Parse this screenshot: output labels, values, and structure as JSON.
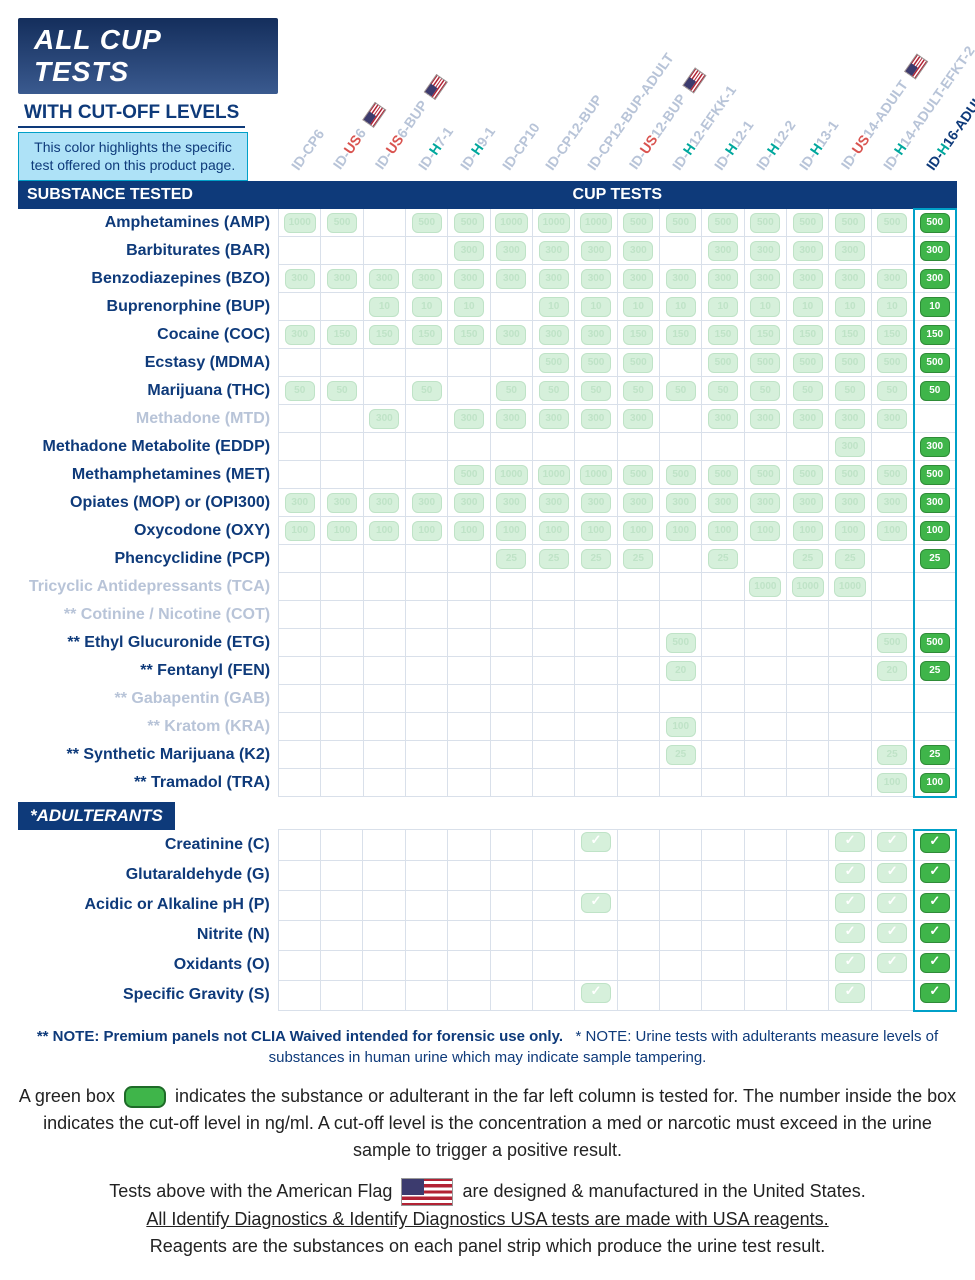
{
  "header": {
    "title": "ALL CUP TESTS",
    "subtitle": "WITH CUT-OFF LEVELS",
    "highlight_note": "This color highlights the specific test offered on this product page."
  },
  "section_labels": {
    "substance": "SUBSTANCE TESTED",
    "cup": "CUP TESTS",
    "adulterants": "*ADULTERANTS"
  },
  "highlight_col": 15,
  "columns": [
    {
      "parts": [
        {
          "t": "ID-",
          "c": "faded"
        },
        {
          "t": "CP",
          "c": "faded"
        },
        {
          "t": "6",
          "c": "faded"
        }
      ],
      "flag": false
    },
    {
      "parts": [
        {
          "t": "ID-",
          "c": "faded"
        },
        {
          "t": "US",
          "c": "red"
        },
        {
          "t": "6",
          "c": "faded"
        }
      ],
      "flag": true
    },
    {
      "parts": [
        {
          "t": "ID-",
          "c": "faded"
        },
        {
          "t": "US",
          "c": "red"
        },
        {
          "t": "6-BUP",
          "c": "faded"
        }
      ],
      "flag": true
    },
    {
      "parts": [
        {
          "t": "ID-",
          "c": "faded"
        },
        {
          "t": "H",
          "c": "teal"
        },
        {
          "t": "7-1",
          "c": "faded"
        }
      ],
      "flag": false
    },
    {
      "parts": [
        {
          "t": "ID-",
          "c": "faded"
        },
        {
          "t": "H",
          "c": "teal"
        },
        {
          "t": "9-1",
          "c": "faded"
        }
      ],
      "flag": false
    },
    {
      "parts": [
        {
          "t": "ID-",
          "c": "faded"
        },
        {
          "t": "CP",
          "c": "faded"
        },
        {
          "t": "10",
          "c": "faded"
        }
      ],
      "flag": false
    },
    {
      "parts": [
        {
          "t": "ID-",
          "c": "faded"
        },
        {
          "t": "CP",
          "c": "faded"
        },
        {
          "t": "12-BUP",
          "c": "faded"
        }
      ],
      "flag": false
    },
    {
      "parts": [
        {
          "t": "ID-",
          "c": "faded"
        },
        {
          "t": "CP",
          "c": "faded"
        },
        {
          "t": "12-BUP-ADULT",
          "c": "faded"
        }
      ],
      "flag": false
    },
    {
      "parts": [
        {
          "t": "ID-",
          "c": "faded"
        },
        {
          "t": "US",
          "c": "red"
        },
        {
          "t": "12-BUP",
          "c": "faded"
        }
      ],
      "flag": true
    },
    {
      "parts": [
        {
          "t": "ID-",
          "c": "faded"
        },
        {
          "t": "H",
          "c": "teal"
        },
        {
          "t": "12-EFKK-1",
          "c": "faded"
        }
      ],
      "flag": false
    },
    {
      "parts": [
        {
          "t": "ID-",
          "c": "faded"
        },
        {
          "t": "H",
          "c": "teal"
        },
        {
          "t": "12-1",
          "c": "faded"
        }
      ],
      "flag": false
    },
    {
      "parts": [
        {
          "t": "ID-",
          "c": "faded"
        },
        {
          "t": "H",
          "c": "teal"
        },
        {
          "t": "12-2",
          "c": "faded"
        }
      ],
      "flag": false
    },
    {
      "parts": [
        {
          "t": "ID-",
          "c": "faded"
        },
        {
          "t": "H",
          "c": "teal"
        },
        {
          "t": "13-1",
          "c": "faded"
        }
      ],
      "flag": false
    },
    {
      "parts": [
        {
          "t": "ID-",
          "c": "faded"
        },
        {
          "t": "US",
          "c": "red"
        },
        {
          "t": "14-ADULT",
          "c": "faded"
        }
      ],
      "flag": true
    },
    {
      "parts": [
        {
          "t": "ID-",
          "c": "faded"
        },
        {
          "t": "H",
          "c": "teal"
        },
        {
          "t": "14-ADULT-EFKT-2",
          "c": "faded"
        }
      ],
      "flag": false
    },
    {
      "parts": [
        {
          "t": "ID-",
          "c": "blue"
        },
        {
          "t": "H",
          "c": "teal"
        },
        {
          "t": "16-ADULT-EFKT",
          "c": "blue"
        }
      ],
      "flag": false
    }
  ],
  "rows": [
    {
      "label": "Amphetamines (AMP)",
      "cells": [
        "1000",
        "500",
        "",
        "500",
        "500",
        "1000",
        "1000",
        "1000",
        "500",
        "500",
        "500",
        "500",
        "500",
        "500",
        "500",
        "500"
      ]
    },
    {
      "label": "Barbiturates (BAR)",
      "cells": [
        "",
        "",
        "",
        "",
        "",
        "300",
        "300",
        "300",
        "300",
        "300",
        "",
        "300",
        "300",
        "300",
        "300",
        "",
        "300"
      ],
      "_skip": true
    },
    {
      "label": "Barbiturates (BAR)",
      "cells": [
        "",
        "",
        "",
        "",
        "300",
        "300",
        "300",
        "300",
        "300",
        "",
        "300",
        "300",
        "300",
        "300",
        "",
        "300"
      ]
    },
    {
      "label": "Benzodiazepines (BZO)",
      "cells": [
        "300",
        "300",
        "300",
        "300",
        "300",
        "300",
        "300",
        "300",
        "300",
        "300",
        "300",
        "300",
        "300",
        "300",
        "300",
        "300"
      ]
    },
    {
      "label": "Buprenorphine (BUP)",
      "cells": [
        "",
        "",
        "10",
        "10",
        "10",
        "",
        "10",
        "10",
        "10",
        "10",
        "10",
        "10",
        "10",
        "10",
        "10",
        "10"
      ]
    },
    {
      "label": "Cocaine (COC)",
      "cells": [
        "300",
        "150",
        "150",
        "150",
        "150",
        "300",
        "300",
        "300",
        "150",
        "150",
        "150",
        "150",
        "150",
        "150",
        "150",
        "150"
      ]
    },
    {
      "label": "Ecstasy (MDMA)",
      "cells": [
        "",
        "",
        "",
        "",
        "",
        "",
        "500",
        "500",
        "500",
        "",
        "500",
        "500",
        "500",
        "500",
        "500",
        "500"
      ]
    },
    {
      "label": "Marijuana (THC)",
      "cells": [
        "50",
        "50",
        "",
        "50",
        "",
        "50",
        "50",
        "50",
        "50",
        "50",
        "50",
        "50",
        "50",
        "50",
        "50",
        "50"
      ]
    },
    {
      "label": "Methadone (MTD)",
      "faded": true,
      "cells": [
        "",
        "",
        "300",
        "",
        "300",
        "300",
        "300",
        "300",
        "300",
        "",
        "300",
        "300",
        "300",
        "300",
        "300",
        ""
      ]
    },
    {
      "label": "Methadone Metabolite (EDDP)",
      "cells": [
        "",
        "",
        "",
        "",
        "",
        "",
        "",
        "",
        "",
        "",
        "",
        "",
        "",
        "300",
        "",
        "300"
      ]
    },
    {
      "label": "Methamphetamines (MET)",
      "cells": [
        "",
        "",
        "",
        "",
        "500",
        "1000",
        "1000",
        "1000",
        "500",
        "500",
        "500",
        "500",
        "500",
        "500",
        "500",
        "500"
      ]
    },
    {
      "label": "Opiates (MOP) or (OPI300)",
      "cells": [
        "300",
        "300",
        "300",
        "300",
        "300",
        "300",
        "300",
        "300",
        "300",
        "300",
        "300",
        "300",
        "300",
        "300",
        "300",
        "300"
      ]
    },
    {
      "label": "Oxycodone (OXY)",
      "cells": [
        "100",
        "100",
        "100",
        "100",
        "100",
        "100",
        "100",
        "100",
        "100",
        "100",
        "100",
        "100",
        "100",
        "100",
        "100",
        "100"
      ]
    },
    {
      "label": "Phencyclidine (PCP)",
      "cells": [
        "",
        "",
        "",
        "",
        "",
        "25",
        "25",
        "25",
        "25",
        "",
        "25",
        "",
        "25",
        "25",
        "",
        "25"
      ]
    },
    {
      "label": "Tricyclic Antidepressants (TCA)",
      "faded": true,
      "cells": [
        "",
        "",
        "",
        "",
        "",
        "",
        "",
        "",
        "",
        "",
        "",
        "1000",
        "1000",
        "1000",
        "",
        ""
      ]
    },
    {
      "label": "** Cotinine / Nicotine (COT)",
      "faded": true,
      "cells": [
        "",
        "",
        "",
        "",
        "",
        "",
        "",
        "",
        "",
        "",
        "",
        "",
        "",
        "",
        "",
        ""
      ]
    },
    {
      "label": "** Ethyl Glucuronide (ETG)",
      "cells": [
        "",
        "",
        "",
        "",
        "",
        "",
        "",
        "",
        "",
        "500",
        "",
        "",
        "",
        "",
        "500",
        "500"
      ]
    },
    {
      "label": "** Fentanyl (FEN)",
      "cells": [
        "",
        "",
        "",
        "",
        "",
        "",
        "",
        "",
        "",
        "20",
        "",
        "",
        "",
        "",
        "20",
        "25"
      ]
    },
    {
      "label": "** Gabapentin (GAB)",
      "faded": true,
      "cells": [
        "",
        "",
        "",
        "",
        "",
        "",
        "",
        "",
        "",
        "",
        "",
        "",
        "",
        "",
        "",
        ""
      ]
    },
    {
      "label": "** Kratom (KRA)",
      "faded": true,
      "cells": [
        "",
        "",
        "",
        "",
        "",
        "",
        "",
        "",
        "",
        "100",
        "",
        "",
        "",
        "",
        "",
        ""
      ]
    },
    {
      "label": "** Synthetic Marijuana (K2)",
      "cells": [
        "",
        "",
        "",
        "",
        "",
        "",
        "",
        "",
        "",
        "25",
        "",
        "",
        "",
        "",
        "25",
        "25"
      ]
    },
    {
      "label": "** Tramadol (TRA)",
      "cells": [
        "",
        "",
        "",
        "",
        "",
        "",
        "",
        "",
        "",
        "",
        "",
        "",
        "",
        "",
        "100",
        "100"
      ]
    }
  ],
  "adulterant_rows": [
    {
      "label": "Creatinine (C)",
      "cells": [
        "",
        "",
        "",
        "",
        "",
        "",
        "",
        "c",
        "",
        "",
        "",
        "",
        "",
        "c",
        "c",
        "c"
      ]
    },
    {
      "label": "Glutaraldehyde (G)",
      "cells": [
        "",
        "",
        "",
        "",
        "",
        "",
        "",
        "",
        "",
        "",
        "",
        "",
        "",
        "c",
        "c",
        "c"
      ]
    },
    {
      "label": "Acidic or Alkaline pH (P)",
      "cells": [
        "",
        "",
        "",
        "",
        "",
        "",
        "",
        "c",
        "",
        "",
        "",
        "",
        "",
        "c",
        "c",
        "c"
      ]
    },
    {
      "label": "Nitrite (N)",
      "cells": [
        "",
        "",
        "",
        "",
        "",
        "",
        "",
        "",
        "",
        "",
        "",
        "",
        "",
        "c",
        "c",
        "c"
      ]
    },
    {
      "label": "Oxidants (O)",
      "cells": [
        "",
        "",
        "",
        "",
        "",
        "",
        "",
        "",
        "",
        "",
        "",
        "",
        "",
        "c",
        "c",
        "c"
      ]
    },
    {
      "label": "Specific Gravity (S)",
      "cells": [
        "",
        "",
        "",
        "",
        "",
        "",
        "",
        "c",
        "",
        "",
        "",
        "",
        "",
        "c",
        "",
        "c"
      ]
    }
  ],
  "notes": {
    "note1a": "** NOTE: Premium panels not CLIA Waived intended for forensic use only.",
    "note1b": "* NOTE: Urine tests with adulterants measure levels of substances in human urine which may indicate sample tampering.",
    "legend1": "A green box",
    "legend2": "indicates the substance or adulterant in the far left column is tested for. The number inside the box indicates the cut-off level in ng/ml. A cut-off level is the concentration a med or narcotic must exceed in the urine sample to trigger a positive result.",
    "usa1": "Tests above with the American Flag",
    "usa2": "are designed & manufactured in the United States.",
    "usa3": "All Identify Diagnostics & Identify Diagnostics USA tests are made with USA reagents.",
    "usa4": "Reagents are the substances on each panel strip which produce the urine test result."
  }
}
